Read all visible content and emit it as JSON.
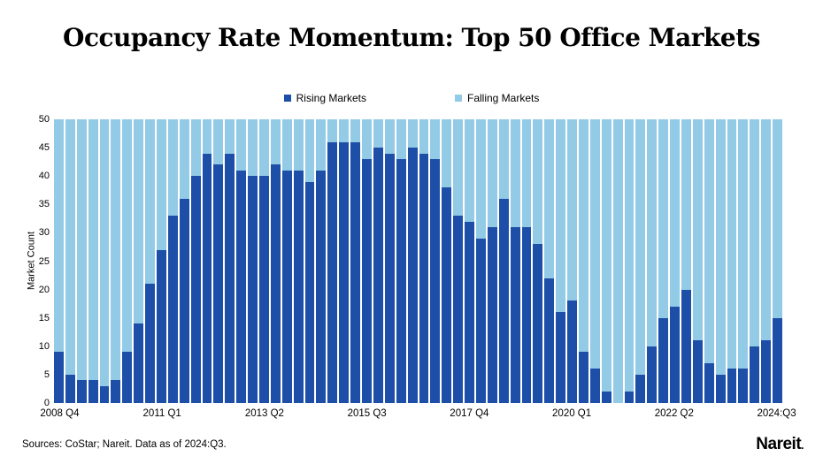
{
  "title": "Occupancy Rate Momentum: Top 50 Office Markets",
  "colors": {
    "rising": "#1D4FA8",
    "falling": "#93CAE6",
    "background": "#FFFFFF",
    "text": "#000000"
  },
  "legend": {
    "items": [
      {
        "label": "Rising Markets",
        "color": "#1D4FA8"
      },
      {
        "label": "Falling Markets",
        "color": "#93CAE6"
      }
    ]
  },
  "footer": {
    "sources": "Sources: CoStar; Nareit. Data as of 2024:Q3.",
    "logo_text": "Nareit",
    "logo_dot": "."
  },
  "chart_data": {
    "type": "bar",
    "stacked": true,
    "stack_total": 50,
    "title": "Occupancy Rate Momentum: Top 50 Office Markets",
    "xlabel": "",
    "ylabel": "Market Count",
    "ylim": [
      0,
      50
    ],
    "y_ticks": [
      0,
      5,
      10,
      15,
      20,
      25,
      30,
      35,
      40,
      45,
      50
    ],
    "grid": false,
    "legend_position": "top-center",
    "x_tick_labels": [
      "2008 Q4",
      "2011 Q1",
      "2013 Q2",
      "2015 Q3",
      "2017 Q4",
      "2020 Q1",
      "2022 Q2",
      "2024:Q3"
    ],
    "x_tick_indices": [
      0,
      9,
      18,
      27,
      36,
      45,
      54,
      63
    ],
    "categories": [
      "2008 Q4",
      "2009 Q1",
      "2009 Q2",
      "2009 Q3",
      "2009 Q4",
      "2010 Q1",
      "2010 Q2",
      "2010 Q3",
      "2010 Q4",
      "2011 Q1",
      "2011 Q2",
      "2011 Q3",
      "2011 Q4",
      "2012 Q1",
      "2012 Q2",
      "2012 Q3",
      "2012 Q4",
      "2013 Q1",
      "2013 Q2",
      "2013 Q3",
      "2013 Q4",
      "2014 Q1",
      "2014 Q2",
      "2014 Q3",
      "2014 Q4",
      "2015 Q1",
      "2015 Q2",
      "2015 Q3",
      "2015 Q4",
      "2016 Q1",
      "2016 Q2",
      "2016 Q3",
      "2016 Q4",
      "2017 Q1",
      "2017 Q2",
      "2017 Q3",
      "2017 Q4",
      "2018 Q1",
      "2018 Q2",
      "2018 Q3",
      "2018 Q4",
      "2019 Q1",
      "2019 Q2",
      "2019 Q3",
      "2019 Q4",
      "2020 Q1",
      "2020 Q2",
      "2020 Q3",
      "2020 Q4",
      "2021 Q1",
      "2021 Q2",
      "2021 Q3",
      "2021 Q4",
      "2022 Q1",
      "2022 Q2",
      "2022 Q3",
      "2022 Q4",
      "2023 Q1",
      "2023 Q2",
      "2023 Q3",
      "2023 Q4",
      "2024 Q1",
      "2024 Q2",
      "2024 Q3"
    ],
    "series": [
      {
        "name": "Rising Markets",
        "color": "#1D4FA8",
        "values": [
          9,
          5,
          4,
          4,
          3,
          4,
          9,
          14,
          21,
          27,
          33,
          36,
          40,
          44,
          42,
          44,
          41,
          40,
          40,
          42,
          41,
          41,
          39,
          41,
          46,
          46,
          46,
          43,
          45,
          44,
          43,
          45,
          44,
          43,
          38,
          33,
          32,
          29,
          31,
          36,
          31,
          31,
          28,
          22,
          16,
          18,
          9,
          6,
          2,
          0,
          2,
          5,
          10,
          15,
          17,
          20,
          11,
          7,
          5,
          6,
          6,
          10,
          11,
          15
        ]
      },
      {
        "name": "Falling Markets",
        "color": "#93CAE6",
        "values": [
          41,
          45,
          46,
          46,
          47,
          46,
          41,
          36,
          29,
          23,
          17,
          14,
          10,
          6,
          8,
          6,
          9,
          10,
          10,
          8,
          9,
          9,
          11,
          9,
          4,
          4,
          4,
          7,
          5,
          6,
          7,
          5,
          6,
          7,
          12,
          17,
          18,
          21,
          19,
          14,
          19,
          19,
          22,
          28,
          34,
          32,
          41,
          44,
          48,
          50,
          48,
          45,
          40,
          35,
          33,
          30,
          39,
          43,
          45,
          44,
          44,
          40,
          39,
          35
        ]
      }
    ]
  }
}
